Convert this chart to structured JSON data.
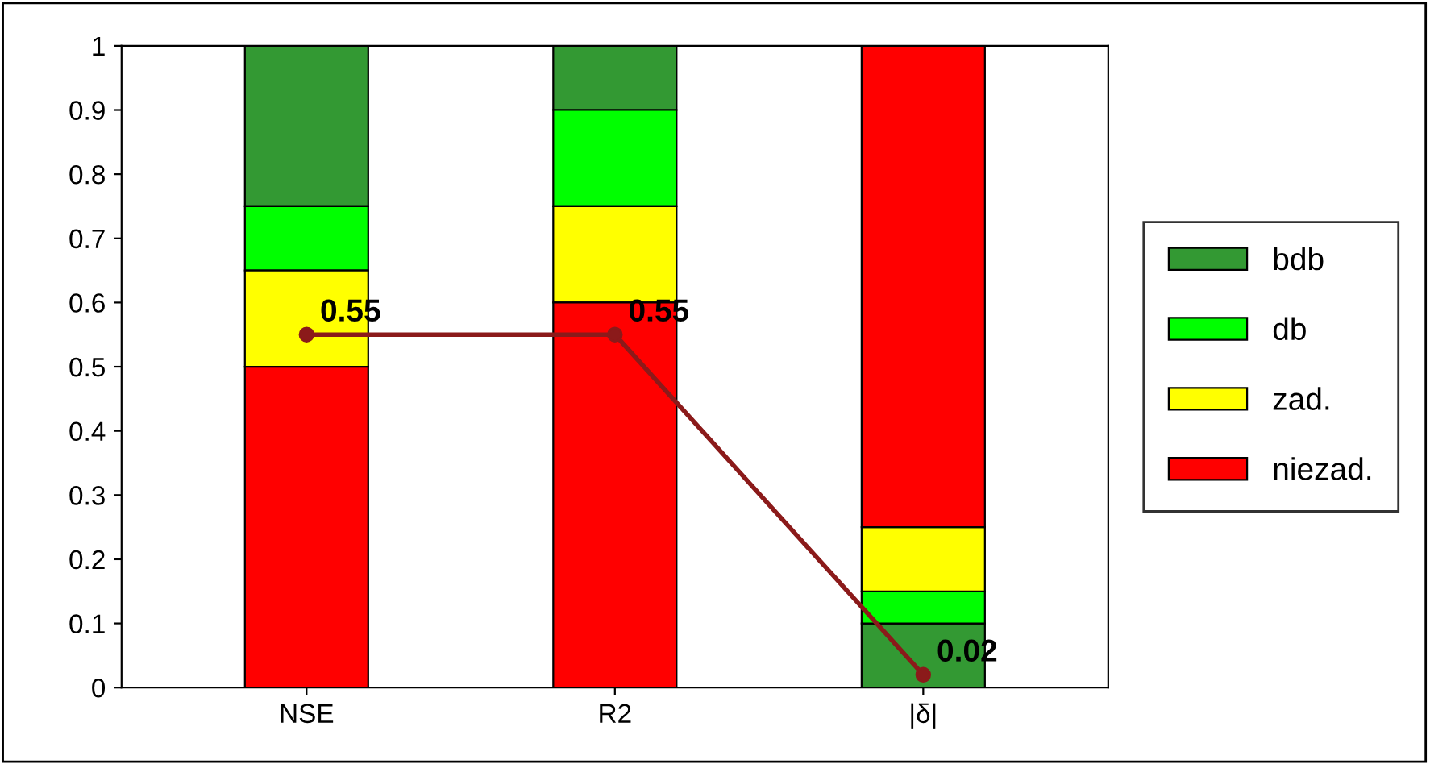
{
  "chart_data": {
    "type": "bar",
    "categories": [
      "NSE",
      "R2",
      "|δ|"
    ],
    "series": [
      {
        "name": "bdb",
        "color": "#339933",
        "values": [
          0.25,
          0.1,
          0.1
        ],
        "base": [
          0.75,
          0.9,
          0
        ]
      },
      {
        "name": "db",
        "color": "#00ff00",
        "values": [
          0.1,
          0.15,
          0.05
        ],
        "base": [
          0.65,
          0.75,
          0.1
        ]
      },
      {
        "name": "zad.",
        "color": "#ffff00",
        "values": [
          0.15,
          0.15,
          0.1
        ],
        "base": [
          0.5,
          0.6,
          0.15
        ]
      },
      {
        "name": "niezad.",
        "color": "#ff0000",
        "values": [
          0.5,
          0.6,
          0.75
        ],
        "base": [
          0,
          0,
          0.25
        ]
      },
      {
        "type": "line",
        "color": "#8b1a1a",
        "values": [
          0.55,
          0.55,
          0.02
        ],
        "value_labels": [
          "0.55",
          "0.55",
          "0.02"
        ],
        "marker": "circle"
      }
    ],
    "ylim": [
      0,
      1
    ],
    "yticks": [
      0,
      0.1,
      0.2,
      0.3,
      0.4,
      0.5,
      0.6,
      0.7,
      0.8,
      0.9,
      1
    ],
    "grid": false,
    "legend": "right"
  }
}
